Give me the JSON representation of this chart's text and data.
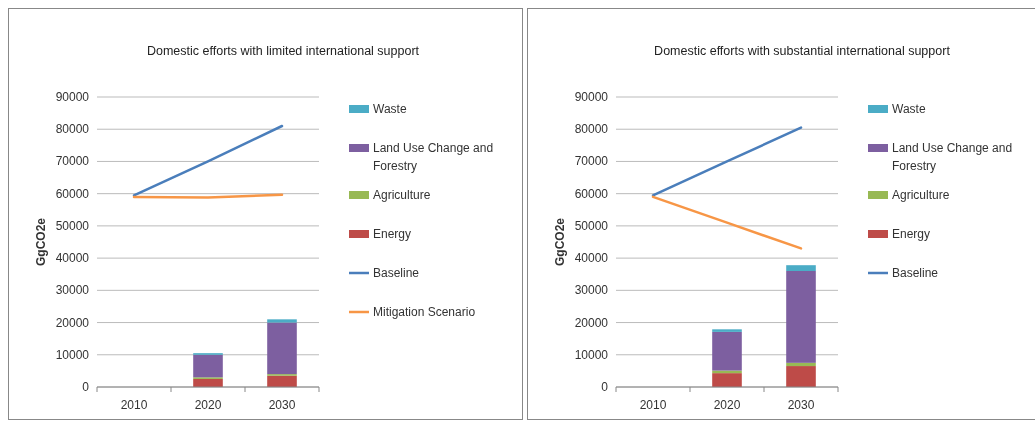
{
  "chart_data": [
    {
      "type": "bar",
      "title": "Domestic efforts with limited international support",
      "ylabel": "GgCO2e",
      "categories": [
        "2010",
        "2020",
        "2030"
      ],
      "stacked": true,
      "ylim": [
        0,
        90000
      ],
      "yticks": [
        0,
        10000,
        20000,
        30000,
        40000,
        50000,
        60000,
        70000,
        80000,
        90000
      ],
      "grid": "y",
      "legend": "right",
      "series": [
        {
          "name": "Energy",
          "color": "#be4b48",
          "values": [
            null,
            2500,
            3500
          ]
        },
        {
          "name": "Agriculture",
          "color": "#98b954",
          "values": [
            null,
            500,
            500
          ]
        },
        {
          "name": "Land Use Change and Forestry",
          "color": "#7d5fa0",
          "values": [
            null,
            7000,
            16000
          ]
        },
        {
          "name": "Waste",
          "color": "#4bacc6",
          "values": [
            null,
            500,
            1000
          ]
        },
        {
          "name": "Baseline",
          "type": "line",
          "color": "#4a7ebb",
          "values": [
            59500,
            70000,
            81000
          ]
        },
        {
          "name": "Mitigation Scenario",
          "type": "line",
          "color": "#f79646",
          "values": [
            59000,
            58800,
            59700
          ]
        }
      ]
    },
    {
      "type": "bar",
      "title": "Domestic efforts with substantial international support",
      "ylabel": "GgCO2e",
      "categories": [
        "2010",
        "2020",
        "2030"
      ],
      "stacked": true,
      "ylim": [
        0,
        90000
      ],
      "yticks": [
        0,
        10000,
        20000,
        30000,
        40000,
        50000,
        60000,
        70000,
        80000,
        90000
      ],
      "grid": "y",
      "legend": "right",
      "series": [
        {
          "name": "Energy",
          "color": "#be4b48",
          "values": [
            null,
            4300,
            6500
          ]
        },
        {
          "name": "Agriculture",
          "color": "#98b954",
          "values": [
            null,
            800,
            1000
          ]
        },
        {
          "name": "Land Use Change and Forestry",
          "color": "#7d5fa0",
          "values": [
            null,
            12000,
            28500
          ]
        },
        {
          "name": "Waste",
          "color": "#4bacc6",
          "values": [
            null,
            800,
            1800
          ]
        },
        {
          "name": "Baseline",
          "type": "line",
          "color": "#4a7ebb",
          "values": [
            59500,
            70000,
            80500
          ]
        },
        {
          "type": "line",
          "color": "#f79646",
          "values": [
            59000,
            51000,
            43000
          ]
        }
      ]
    }
  ]
}
